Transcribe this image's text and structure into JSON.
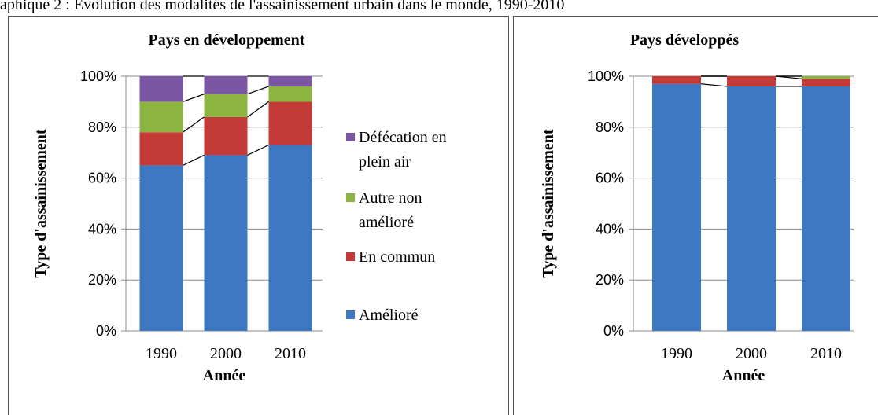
{
  "caption": "aphique 2 : Évolution des modalités de l'assainissement urbain dans le monde, 1990-2010",
  "chart_data": [
    {
      "type": "bar",
      "stacked": true,
      "title": "Pays en développement",
      "x_label": "Année",
      "y_label": "Type d'assainissement",
      "categories": [
        "1990",
        "2000",
        "2010"
      ],
      "series": [
        {
          "name": "Amélioré",
          "color": "#3f78c2",
          "values": [
            65,
            69,
            73
          ]
        },
        {
          "name": "En commun",
          "color": "#c43a37",
          "values": [
            13,
            15,
            17
          ]
        },
        {
          "name": "Autre non amélioré",
          "color": "#8cb440",
          "values": [
            12,
            9,
            6
          ]
        },
        {
          "name": "Défécation en plein air",
          "color": "#7b57a3",
          "values": [
            10,
            7,
            4
          ]
        }
      ],
      "ylim": [
        0,
        100
      ],
      "yticks": [
        {
          "value": 0,
          "label": "0%"
        },
        {
          "value": 20,
          "label": "20%"
        },
        {
          "value": 40,
          "label": "40%"
        },
        {
          "value": 60,
          "label": "60%"
        },
        {
          "value": 80,
          "label": "80%"
        },
        {
          "value": 100,
          "label": "100%"
        }
      ],
      "grid": true,
      "legend": "right"
    },
    {
      "type": "bar",
      "stacked": true,
      "title": "Pays développés",
      "x_label": "Année",
      "y_label": "Type d'assainissement",
      "categories": [
        "1990",
        "2000",
        "2010"
      ],
      "series": [
        {
          "color": "#3f78c2",
          "values": [
            97,
            96,
            96
          ]
        },
        {
          "color": "#c43a37",
          "values": [
            3,
            4,
            3
          ]
        },
        {
          "color": "#8cb440",
          "values": [
            0,
            0,
            1
          ]
        },
        {
          "color": "#7b57a3",
          "values": [
            0,
            0,
            0
          ]
        }
      ],
      "ylim": [
        0,
        100
      ],
      "yticks": [
        {
          "value": 0,
          "label": "0%"
        },
        {
          "value": 20,
          "label": "20%"
        },
        {
          "value": 40,
          "label": "40%"
        },
        {
          "value": 60,
          "label": "60%"
        },
        {
          "value": 80,
          "label": "80%"
        },
        {
          "value": 100,
          "label": "100%"
        }
      ],
      "grid": true
    }
  ]
}
